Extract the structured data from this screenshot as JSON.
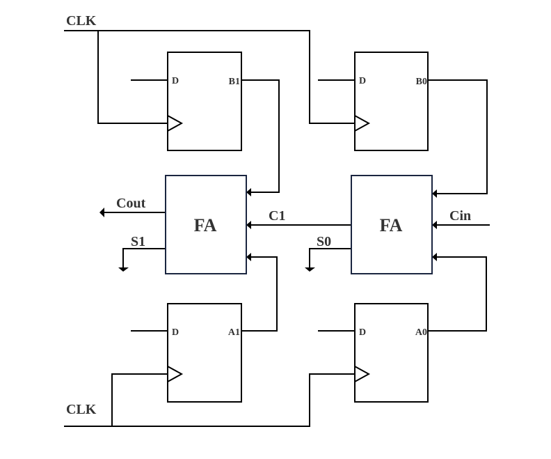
{
  "signals": {
    "clk_top": "CLK",
    "clk_bottom": "CLK",
    "cout": "Cout",
    "s1": "S1",
    "c1": "C1",
    "s0": "S0",
    "cin": "Cin"
  },
  "adders": {
    "left": "FA",
    "right": "FA"
  },
  "flipflops": {
    "b1": {
      "d": "D",
      "q": "B1"
    },
    "b0": {
      "d": "D",
      "q": "B0"
    },
    "a1": {
      "d": "D",
      "q": "A1"
    },
    "a0": {
      "d": "D",
      "q": "A0"
    }
  },
  "colors": {
    "wire": "#000000",
    "text": "#333333",
    "adder_border": "#1a2540"
  }
}
